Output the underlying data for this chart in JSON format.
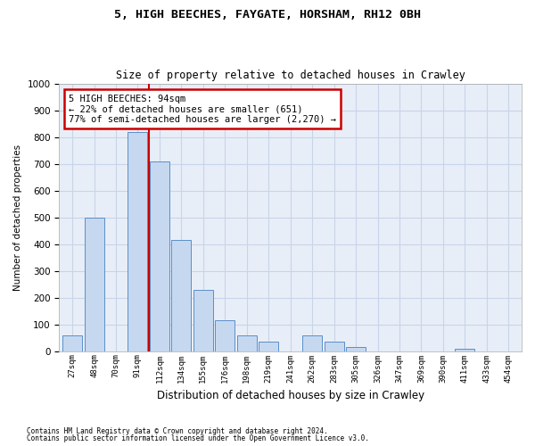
{
  "title1": "5, HIGH BEECHES, FAYGATE, HORSHAM, RH12 0BH",
  "title2": "Size of property relative to detached houses in Crawley",
  "xlabel": "Distribution of detached houses by size in Crawley",
  "ylabel": "Number of detached properties",
  "footer1": "Contains HM Land Registry data © Crown copyright and database right 2024.",
  "footer2": "Contains public sector information licensed under the Open Government Licence v3.0.",
  "bar_labels": [
    "27sqm",
    "48sqm",
    "70sqm",
    "91sqm",
    "112sqm",
    "134sqm",
    "155sqm",
    "176sqm",
    "198sqm",
    "219sqm",
    "241sqm",
    "262sqm",
    "283sqm",
    "305sqm",
    "326sqm",
    "347sqm",
    "369sqm",
    "390sqm",
    "411sqm",
    "433sqm",
    "454sqm"
  ],
  "bar_values": [
    60,
    500,
    0,
    820,
    710,
    415,
    230,
    115,
    60,
    35,
    0,
    60,
    35,
    15,
    0,
    0,
    0,
    0,
    10,
    0,
    0
  ],
  "bar_color": "#c6d8ef",
  "bar_edge_color": "#5b8fc9",
  "grid_color": "#c8d4e8",
  "background_color": "#e8eef8",
  "vline_x": 3.5,
  "vline_color": "#cc0000",
  "annotation_text": "5 HIGH BEECHES: 94sqm\n← 22% of detached houses are smaller (651)\n77% of semi-detached houses are larger (2,270) →",
  "annotation_box_color": "white",
  "annotation_box_edge_color": "#cc0000",
  "ylim": [
    0,
    1000
  ],
  "yticks": [
    0,
    100,
    200,
    300,
    400,
    500,
    600,
    700,
    800,
    900,
    1000
  ]
}
